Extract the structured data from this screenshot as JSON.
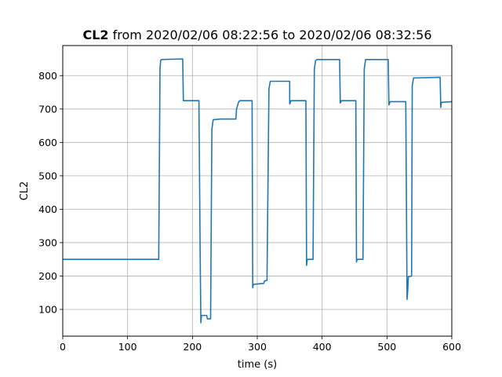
{
  "chart_data": {
    "type": "line",
    "title_bold": "CL2",
    "title_rest": " from 2020/02/06 08:22:56 to 2020/02/06 08:32:56",
    "xlabel": "time (s)",
    "ylabel": "CL2",
    "xlim": [
      0,
      600
    ],
    "ylim": [
      20,
      890
    ],
    "xticks": [
      0,
      100,
      200,
      300,
      400,
      500,
      600
    ],
    "yticks": [
      100,
      200,
      300,
      400,
      500,
      600,
      700,
      800
    ],
    "grid": true,
    "series": [
      {
        "color": "#1f77b4",
        "points": [
          [
            0,
            250
          ],
          [
            148,
            250
          ],
          [
            150,
            820
          ],
          [
            151,
            845
          ],
          [
            152,
            848
          ],
          [
            185,
            850
          ],
          [
            186,
            725
          ],
          [
            210,
            725
          ],
          [
            212,
            250
          ],
          [
            213,
            60
          ],
          [
            214,
            82
          ],
          [
            222,
            82
          ],
          [
            223,
            72
          ],
          [
            228,
            72
          ],
          [
            230,
            640
          ],
          [
            232,
            668
          ],
          [
            243,
            670
          ],
          [
            244,
            670
          ],
          [
            267,
            670
          ],
          [
            268,
            700
          ],
          [
            271,
            720
          ],
          [
            273,
            725
          ],
          [
            292,
            725
          ],
          [
            293,
            165
          ],
          [
            294,
            175
          ],
          [
            310,
            178
          ],
          [
            311,
            185
          ],
          [
            315,
            187
          ],
          [
            318,
            760
          ],
          [
            320,
            783
          ],
          [
            350,
            783
          ],
          [
            350,
            715
          ],
          [
            352,
            725
          ],
          [
            375,
            725
          ],
          [
            376,
            232
          ],
          [
            377,
            248
          ],
          [
            378,
            250
          ],
          [
            386,
            250
          ],
          [
            388,
            820
          ],
          [
            390,
            845
          ],
          [
            392,
            848
          ],
          [
            427,
            848
          ],
          [
            428,
            718
          ],
          [
            430,
            725
          ],
          [
            452,
            725
          ],
          [
            453,
            242
          ],
          [
            454,
            250
          ],
          [
            463,
            250
          ],
          [
            465,
            820
          ],
          [
            467,
            848
          ],
          [
            502,
            848
          ],
          [
            503,
            712
          ],
          [
            505,
            722
          ],
          [
            529,
            722
          ],
          [
            531,
            130
          ],
          [
            532,
            155
          ],
          [
            533,
            198
          ],
          [
            538,
            200
          ],
          [
            539,
            770
          ],
          [
            541,
            793
          ],
          [
            582,
            795
          ],
          [
            583,
            705
          ],
          [
            584,
            720
          ],
          [
            600,
            722
          ]
        ]
      }
    ]
  }
}
